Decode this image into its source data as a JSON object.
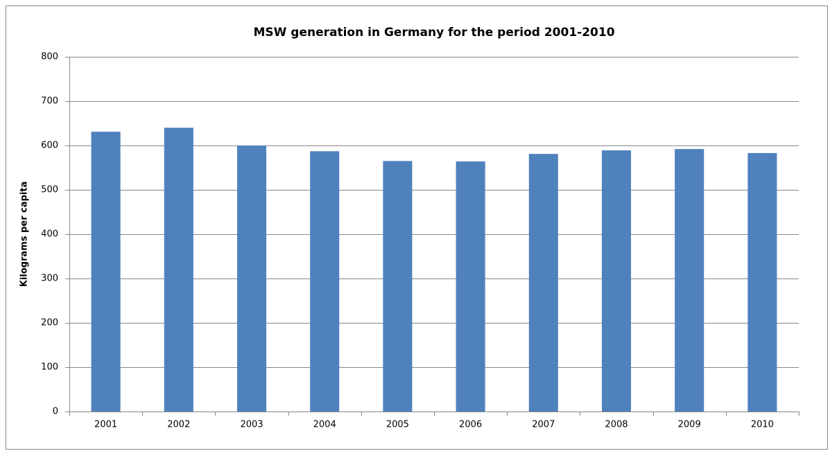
{
  "chart_data": {
    "type": "bar",
    "title": "MSW generation in Germany for the period 2001-2010",
    "y_label": "Kilograms per capita",
    "categories": [
      "2001",
      "2002",
      "2003",
      "2004",
      "2005",
      "2006",
      "2007",
      "2008",
      "2009",
      "2010"
    ],
    "values": [
      631,
      640,
      600,
      587,
      565,
      564,
      581,
      589,
      592,
      583
    ],
    "color": "#4f81bd",
    "ylim": [
      0,
      800
    ],
    "yticks": [
      0,
      100,
      200,
      300,
      400,
      500,
      600,
      700,
      800
    ],
    "grid": true
  }
}
